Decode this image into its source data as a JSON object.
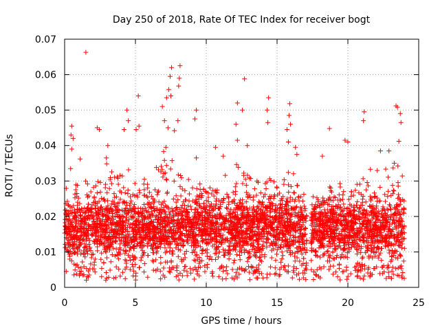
{
  "chart_data": {
    "type": "scatter",
    "title": "Day 250 of 2018, Rate Of TEC Index for receiver bogt",
    "xlabel": "GPS time / hours",
    "ylabel": "ROTI / TECUs",
    "xlim": [
      0,
      25
    ],
    "ylim": [
      0,
      0.07
    ],
    "x_ticks": [
      "0",
      "5",
      "10",
      "15",
      "20",
      "25"
    ],
    "y_ticks": [
      "0",
      "0.01",
      "0.02",
      "0.03",
      "0.04",
      "0.05",
      "0.06",
      "0.07"
    ],
    "grid": true,
    "marker": "+",
    "marker_color": "#ff0000",
    "coverage": {
      "x_range": [
        0,
        24
      ],
      "gap": [
        17.1,
        17.4
      ],
      "typical_range": [
        0.005,
        0.028
      ],
      "envelope": [
        [
          0,
          0.026
        ],
        [
          0.5,
          0.035
        ],
        [
          1,
          0.03
        ],
        [
          1.5,
          0.03
        ],
        [
          2,
          0.028
        ],
        [
          2.5,
          0.032
        ],
        [
          3,
          0.038
        ],
        [
          3.5,
          0.033
        ],
        [
          4,
          0.034
        ],
        [
          4.5,
          0.034
        ],
        [
          5,
          0.03
        ],
        [
          5.5,
          0.03
        ],
        [
          6,
          0.032
        ],
        [
          6.5,
          0.036
        ],
        [
          7,
          0.042
        ],
        [
          7.5,
          0.038
        ],
        [
          8,
          0.035
        ],
        [
          8.5,
          0.033
        ],
        [
          9,
          0.033
        ],
        [
          9.5,
          0.031
        ],
        [
          10,
          0.029
        ],
        [
          10.5,
          0.03
        ],
        [
          11,
          0.032
        ],
        [
          11.5,
          0.033
        ],
        [
          12,
          0.036
        ],
        [
          12.5,
          0.035
        ],
        [
          13,
          0.031
        ],
        [
          13.5,
          0.03
        ],
        [
          14,
          0.031
        ],
        [
          14.5,
          0.031
        ],
        [
          15,
          0.03
        ],
        [
          15.5,
          0.032
        ],
        [
          16,
          0.035
        ],
        [
          16.5,
          0.028
        ],
        [
          17,
          0.022
        ],
        [
          17.5,
          0.022
        ],
        [
          18,
          0.024
        ],
        [
          18.5,
          0.026
        ],
        [
          19,
          0.032
        ],
        [
          19.5,
          0.029
        ],
        [
          20,
          0.028
        ],
        [
          20.5,
          0.028
        ],
        [
          21,
          0.033
        ],
        [
          21.5,
          0.036
        ],
        [
          22,
          0.036
        ],
        [
          22.5,
          0.035
        ],
        [
          23,
          0.035
        ],
        [
          23.5,
          0.037
        ],
        [
          24,
          0.03
        ]
      ]
    },
    "points": [
      [
        1.5,
        0.0663
      ],
      [
        7.55,
        0.062
      ],
      [
        8.15,
        0.0625
      ],
      [
        7.45,
        0.0595
      ],
      [
        8.1,
        0.059
      ],
      [
        12.7,
        0.0588
      ],
      [
        8.05,
        0.0568
      ],
      [
        7.35,
        0.0558
      ],
      [
        7.5,
        0.054
      ],
      [
        5.2,
        0.054
      ],
      [
        7.2,
        0.0535
      ],
      [
        14.4,
        0.0535
      ],
      [
        12.2,
        0.052
      ],
      [
        6.9,
        0.051
      ],
      [
        15.9,
        0.0518
      ],
      [
        23.4,
        0.0512
      ],
      [
        23.5,
        0.0508
      ],
      [
        4.4,
        0.05
      ],
      [
        9.3,
        0.05
      ],
      [
        12.55,
        0.05
      ],
      [
        14.3,
        0.05
      ],
      [
        21.15,
        0.0495
      ],
      [
        23.7,
        0.049
      ],
      [
        15.85,
        0.0485
      ],
      [
        4.5,
        0.047
      ],
      [
        7.05,
        0.047
      ],
      [
        8.0,
        0.047
      ],
      [
        9.2,
        0.0475
      ],
      [
        12.1,
        0.046
      ],
      [
        14.35,
        0.0465
      ],
      [
        15.95,
        0.046
      ],
      [
        23.75,
        0.0465
      ],
      [
        0.5,
        0.0455
      ],
      [
        5.25,
        0.0455
      ],
      [
        7.3,
        0.045
      ],
      [
        2.3,
        0.045
      ],
      [
        2.45,
        0.0445
      ],
      [
        18.7,
        0.0448
      ],
      [
        4.2,
        0.0445
      ],
      [
        15.7,
        0.0445
      ],
      [
        21.1,
        0.047
      ],
      [
        0.45,
        0.043
      ],
      [
        0.6,
        0.042
      ],
      [
        7.75,
        0.0442
      ],
      [
        5.05,
        0.0445
      ],
      [
        12.2,
        0.0415
      ],
      [
        15.8,
        0.041
      ],
      [
        19.8,
        0.0415
      ],
      [
        20.0,
        0.041
      ],
      [
        23.6,
        0.0412
      ],
      [
        0.5,
        0.039
      ],
      [
        3.05,
        0.04
      ],
      [
        7.15,
        0.0395
      ],
      [
        10.65,
        0.0395
      ],
      [
        12.9,
        0.04
      ],
      [
        16.3,
        0.0395
      ],
      [
        16.4,
        0.0375
      ],
      [
        1.1,
        0.0362
      ],
      [
        9.3,
        0.0365
      ],
      [
        11.2,
        0.037
      ],
      [
        18.2,
        0.037
      ],
      [
        22.3,
        0.0385
      ],
      [
        22.9,
        0.0385
      ],
      [
        2.95,
        0.0365
      ]
    ]
  }
}
